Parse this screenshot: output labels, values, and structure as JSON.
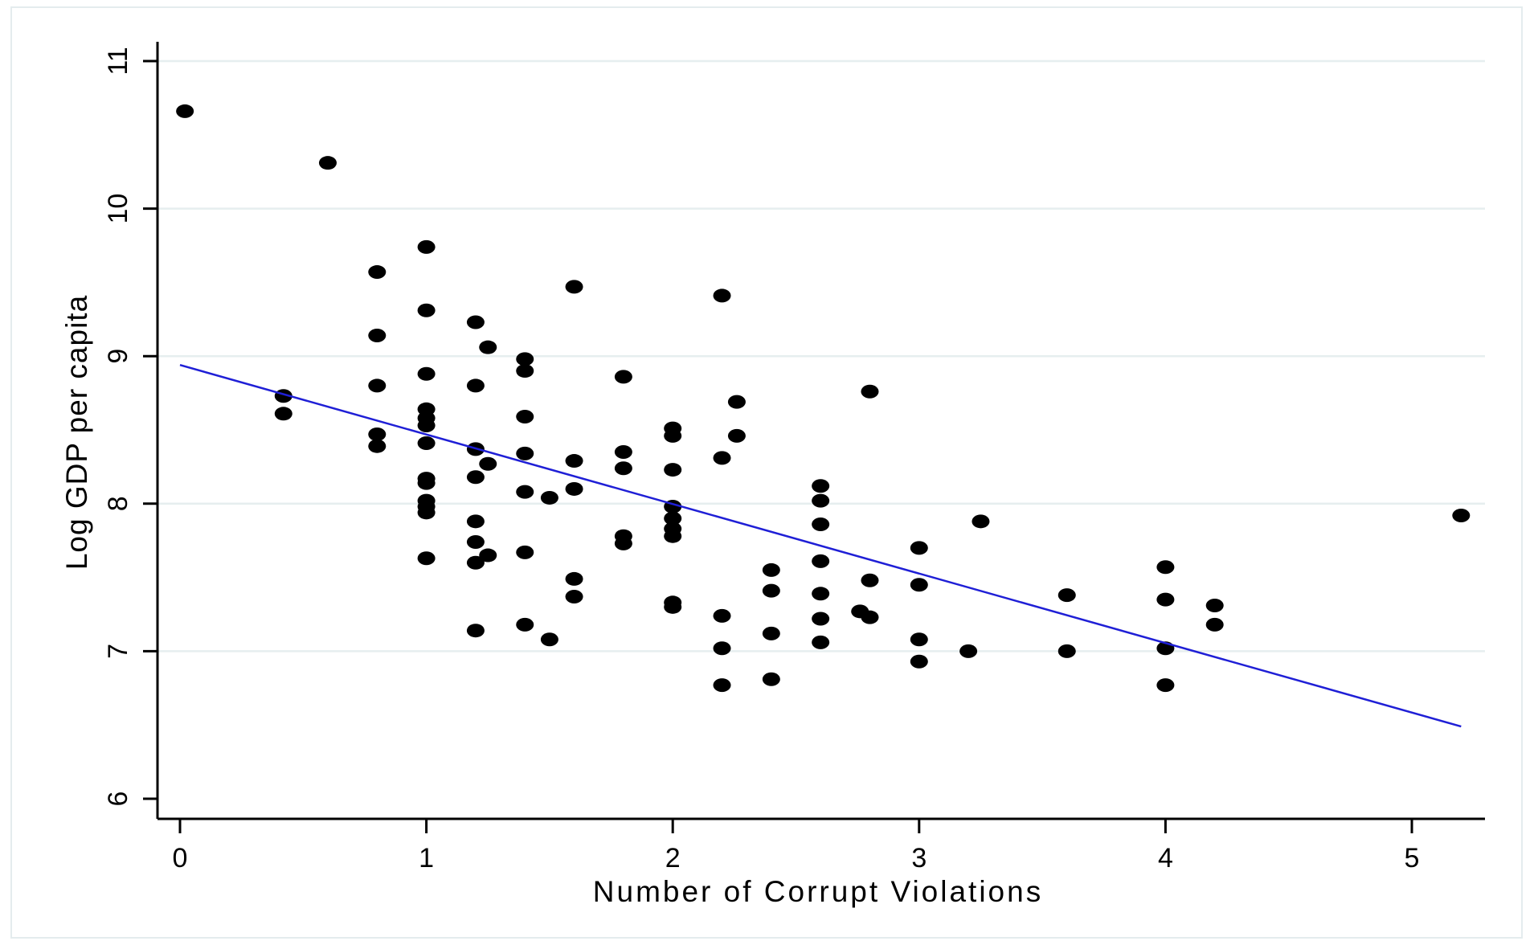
{
  "chart_data": {
    "type": "scatter",
    "title": "",
    "xlabel": "Number of Corrupt Violations",
    "ylabel": "Log GDP per capita",
    "xlim": [
      0,
      5.3
    ],
    "ylim": [
      6,
      11
    ],
    "xticks": [
      0,
      1,
      2,
      3,
      4,
      5
    ],
    "yticks": [
      6,
      7,
      8,
      9,
      10,
      11
    ],
    "grid": "horizontal",
    "points": [
      [
        0.02,
        10.66
      ],
      [
        0.6,
        10.31
      ],
      [
        0.42,
        8.73
      ],
      [
        0.42,
        8.61
      ],
      [
        0.8,
        9.57
      ],
      [
        0.8,
        9.14
      ],
      [
        0.8,
        8.8
      ],
      [
        0.8,
        8.47
      ],
      [
        0.8,
        8.39
      ],
      [
        1.0,
        9.74
      ],
      [
        1.0,
        9.31
      ],
      [
        1.0,
        8.88
      ],
      [
        1.0,
        8.64
      ],
      [
        1.0,
        8.58
      ],
      [
        1.0,
        8.53
      ],
      [
        1.0,
        8.41
      ],
      [
        1.0,
        8.17
      ],
      [
        1.0,
        8.14
      ],
      [
        1.0,
        8.02
      ],
      [
        1.0,
        7.98
      ],
      [
        1.0,
        7.94
      ],
      [
        1.0,
        7.63
      ],
      [
        1.2,
        9.23
      ],
      [
        1.2,
        8.8
      ],
      [
        1.2,
        8.37
      ],
      [
        1.2,
        8.18
      ],
      [
        1.2,
        7.88
      ],
      [
        1.2,
        7.74
      ],
      [
        1.2,
        7.6
      ],
      [
        1.2,
        7.14
      ],
      [
        1.25,
        9.06
      ],
      [
        1.25,
        8.27
      ],
      [
        1.25,
        7.65
      ],
      [
        1.4,
        8.98
      ],
      [
        1.4,
        8.9
      ],
      [
        1.4,
        8.59
      ],
      [
        1.4,
        8.34
      ],
      [
        1.4,
        8.08
      ],
      [
        1.4,
        7.67
      ],
      [
        1.4,
        7.18
      ],
      [
        1.5,
        8.04
      ],
      [
        1.5,
        7.08
      ],
      [
        1.6,
        9.47
      ],
      [
        1.6,
        8.29
      ],
      [
        1.6,
        8.1
      ],
      [
        1.6,
        7.49
      ],
      [
        1.6,
        7.37
      ],
      [
        1.8,
        8.86
      ],
      [
        1.8,
        8.35
      ],
      [
        1.8,
        8.24
      ],
      [
        1.8,
        7.78
      ],
      [
        1.8,
        7.73
      ],
      [
        2.0,
        8.51
      ],
      [
        2.0,
        8.46
      ],
      [
        2.0,
        8.23
      ],
      [
        2.0,
        7.98
      ],
      [
        2.0,
        7.9
      ],
      [
        2.0,
        7.83
      ],
      [
        2.0,
        7.78
      ],
      [
        2.0,
        7.33
      ],
      [
        2.0,
        7.3
      ],
      [
        2.2,
        9.41
      ],
      [
        2.2,
        8.31
      ],
      [
        2.2,
        7.24
      ],
      [
        2.2,
        7.02
      ],
      [
        2.2,
        6.77
      ],
      [
        2.26,
        8.69
      ],
      [
        2.26,
        8.46
      ],
      [
        2.4,
        7.55
      ],
      [
        2.4,
        7.41
      ],
      [
        2.4,
        7.12
      ],
      [
        2.4,
        6.81
      ],
      [
        2.6,
        8.12
      ],
      [
        2.6,
        8.02
      ],
      [
        2.6,
        7.86
      ],
      [
        2.6,
        7.61
      ],
      [
        2.6,
        7.39
      ],
      [
        2.6,
        7.22
      ],
      [
        2.6,
        7.06
      ],
      [
        2.76,
        7.27
      ],
      [
        2.8,
        8.76
      ],
      [
        2.8,
        7.48
      ],
      [
        2.8,
        7.23
      ],
      [
        3.0,
        7.7
      ],
      [
        3.0,
        7.45
      ],
      [
        3.0,
        7.08
      ],
      [
        3.0,
        6.93
      ],
      [
        3.2,
        7.0
      ],
      [
        3.25,
        7.88
      ],
      [
        3.6,
        7.38
      ],
      [
        3.6,
        7.0
      ],
      [
        4.0,
        7.57
      ],
      [
        4.0,
        7.35
      ],
      [
        4.0,
        7.02
      ],
      [
        4.0,
        6.77
      ],
      [
        4.2,
        7.31
      ],
      [
        4.2,
        7.18
      ],
      [
        5.2,
        7.92
      ]
    ],
    "fit_line": {
      "x": [
        0,
        5.2
      ],
      "y": [
        8.94,
        6.49
      ]
    },
    "colors": {
      "points": "#000000",
      "fit_line": "#1f1fd6",
      "grid": "#e6eeef",
      "frame": "#e4ecee"
    }
  }
}
